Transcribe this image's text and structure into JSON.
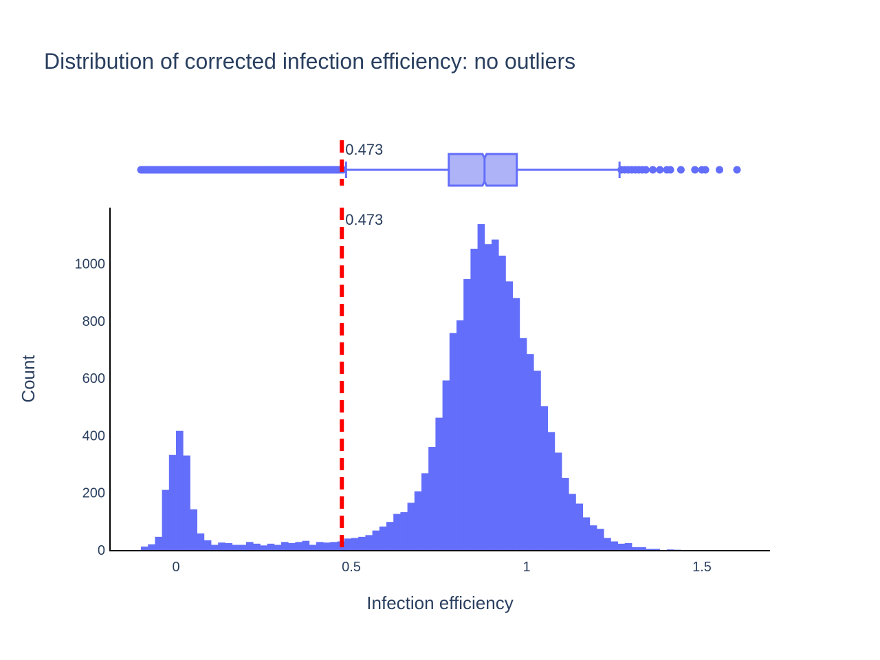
{
  "chart_data": {
    "type": "bar",
    "title": "Distribution of corrected infection efficiency: no outliers",
    "xlabel": "Infection efficiency",
    "ylabel": "Count",
    "xlim": [
      -0.2,
      1.7
    ],
    "ylim": [
      0,
      1200
    ],
    "x_ticks": [
      0,
      0.5,
      1,
      1.5
    ],
    "x_tick_labels": [
      "0",
      "0.5",
      "1",
      "1.5"
    ],
    "y_ticks": [
      0,
      200,
      400,
      600,
      800,
      1000
    ],
    "y_tick_labels": [
      "0",
      "200",
      "400",
      "600",
      "800",
      "1000"
    ],
    "bar_color": "#636efa",
    "bin_width": 0.02,
    "bins_start": [
      -0.1,
      -0.08,
      -0.06,
      -0.04,
      -0.02,
      0.0,
      0.02,
      0.04,
      0.06,
      0.08,
      0.1,
      0.12,
      0.14,
      0.16,
      0.18,
      0.2,
      0.22,
      0.24,
      0.26,
      0.28,
      0.3,
      0.32,
      0.34,
      0.36,
      0.38,
      0.4,
      0.42,
      0.44,
      0.46,
      0.48,
      0.5,
      0.52,
      0.54,
      0.56,
      0.58,
      0.6,
      0.62,
      0.64,
      0.66,
      0.68,
      0.7,
      0.72,
      0.74,
      0.76,
      0.78,
      0.8,
      0.82,
      0.84,
      0.86,
      0.88,
      0.9,
      0.92,
      0.94,
      0.96,
      0.98,
      1.0,
      1.02,
      1.04,
      1.06,
      1.08,
      1.1,
      1.12,
      1.14,
      1.16,
      1.18,
      1.2,
      1.22,
      1.24,
      1.26,
      1.28,
      1.3,
      1.32,
      1.34,
      1.36,
      1.38,
      1.4,
      1.42
    ],
    "counts": [
      12,
      20,
      46,
      210,
      332,
      416,
      330,
      142,
      58,
      34,
      18,
      26,
      24,
      18,
      18,
      28,
      22,
      16,
      22,
      18,
      28,
      24,
      28,
      32,
      18,
      28,
      26,
      28,
      30,
      40,
      42,
      46,
      52,
      68,
      82,
      98,
      126,
      132,
      165,
      205,
      268,
      360,
      462,
      592,
      758,
      802,
      946,
      1052,
      1138,
      1068,
      1084,
      1028,
      938,
      880,
      740,
      684,
      626,
      502,
      412,
      340,
      252,
      196,
      162,
      114,
      86,
      74,
      42,
      30,
      22,
      24,
      10,
      10,
      4,
      4,
      0,
      2,
      1
    ],
    "threshold": {
      "value": 0.473,
      "label": "0.473",
      "color": "#ff0000",
      "style": "dashed"
    },
    "boxplot": {
      "orientation": "horizontal",
      "color": "#636efa",
      "fill": "#aeb3f8",
      "q1": 0.778,
      "median": 0.88,
      "q3": 0.972,
      "lower_fence": 0.485,
      "upper_fence": 1.265,
      "low_outliers_range": [
        -0.1,
        0.48
      ],
      "high_outliers": [
        1.27,
        1.28,
        1.29,
        1.3,
        1.31,
        1.32,
        1.33,
        1.34,
        1.36,
        1.38,
        1.4,
        1.41,
        1.44,
        1.48,
        1.5,
        1.51,
        1.55,
        1.6
      ]
    }
  }
}
